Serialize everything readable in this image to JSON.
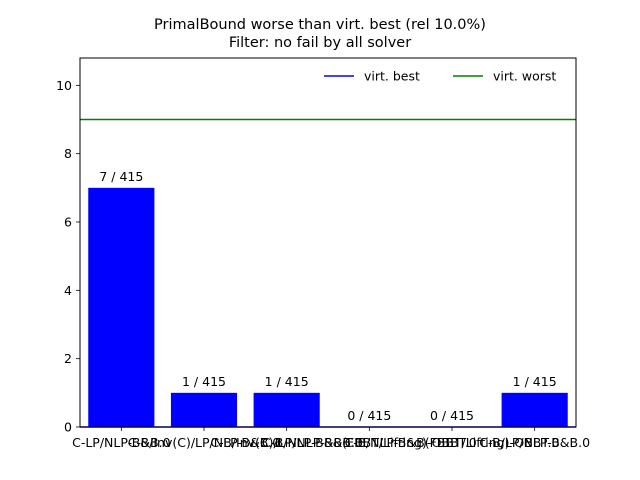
{
  "chart_data": {
    "type": "bar",
    "title": "PrimalBound worse than virt. best (rel 10.0%)",
    "subtitle": "Filter: no fail by all solver",
    "xlabel": "",
    "ylabel": "",
    "categories": [
      "C-LP/NLP-B&B.0",
      "C-B/Inv(C)/LP/NLP-B&B.0",
      "C-B/Inv(C)/LP/NLP-B&B.0",
      "C-B/NLP-B&B(FBBT/Lifting)-OBBT.0",
      "C-B/NLP-B&B(FBBT/Lifting)-OBBT.0",
      "C-B/LP/NLP-B&B.0"
    ],
    "values": [
      7,
      1,
      1,
      0,
      0,
      1
    ],
    "bar_labels": [
      "7 / 415",
      "1 / 415",
      "1 / 415",
      "0 / 415",
      "0 / 415",
      "1 / 415"
    ],
    "ylim": [
      0,
      10.8
    ],
    "yticks": [
      0,
      2,
      4,
      6,
      8,
      10
    ],
    "reference_lines": [
      {
        "name": "virt. best",
        "value": 0,
        "color": "#0000ff"
      },
      {
        "name": "virt. worst",
        "value": 9,
        "color": "#008000"
      }
    ],
    "bar_color": "#0000ff",
    "legend_position": "top-right",
    "grid": false
  }
}
